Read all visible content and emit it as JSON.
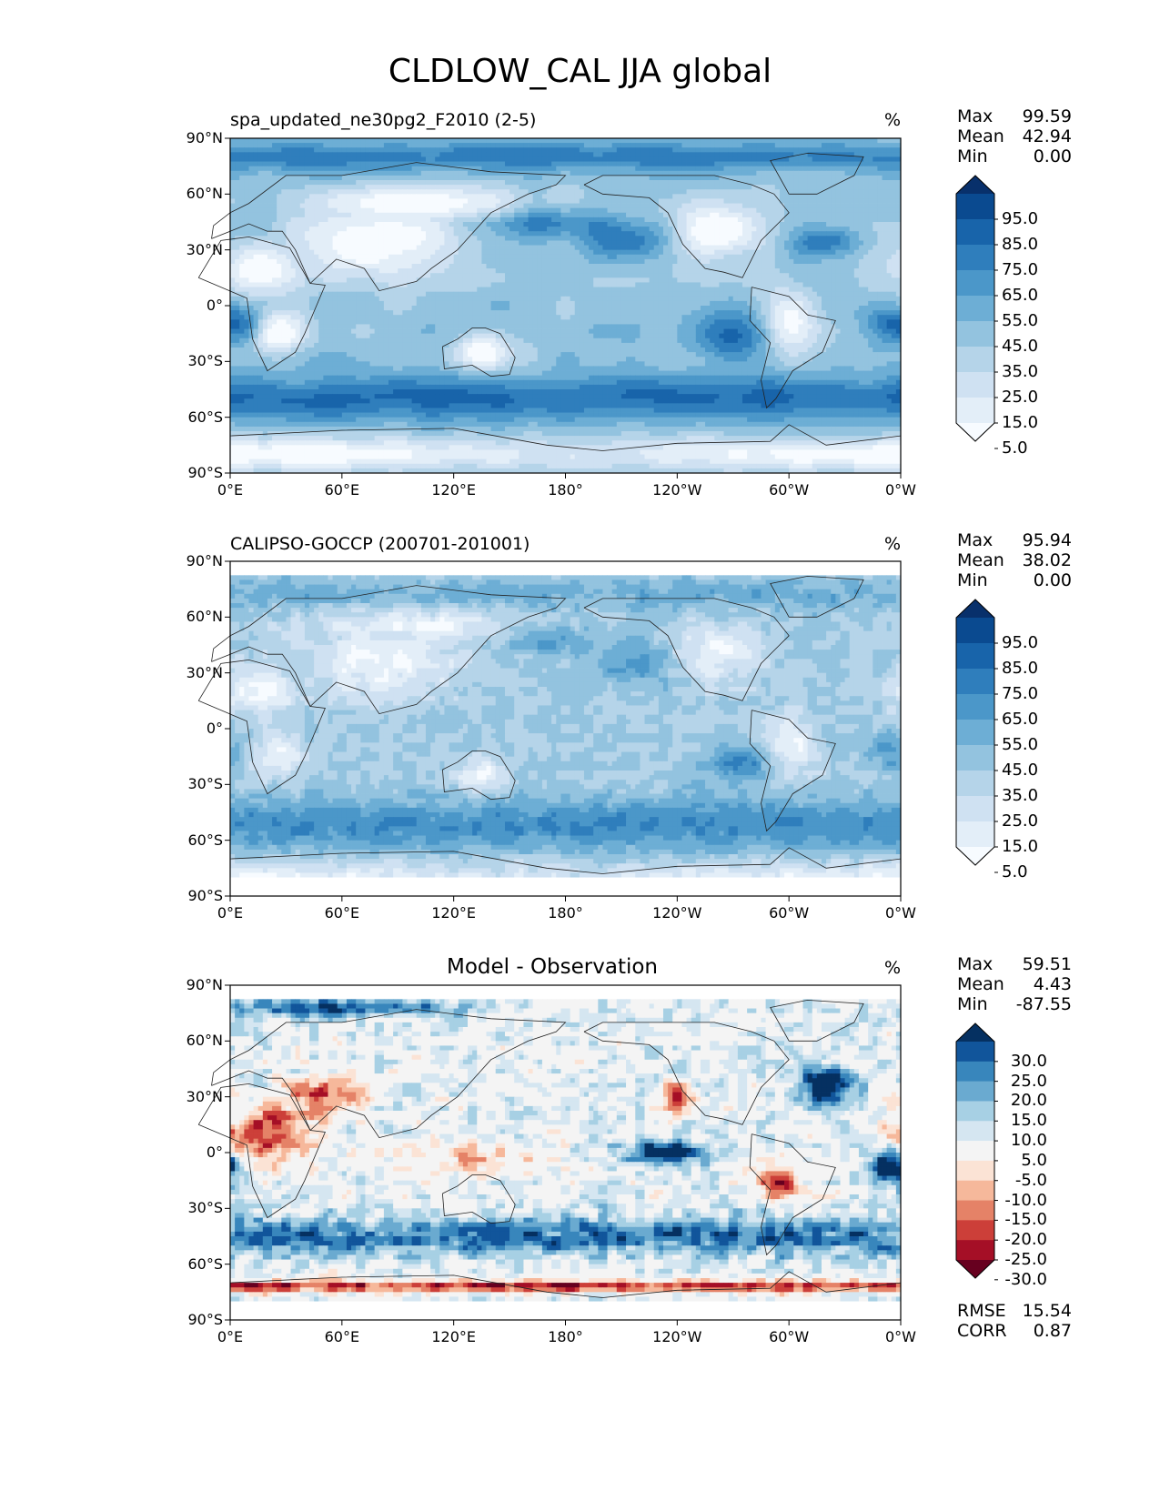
{
  "suptitle": "CLDLOW_CAL JJA global",
  "axes": {
    "lat_ticks": [
      "90°N",
      "60°N",
      "30°N",
      "0°",
      "30°S",
      "60°S",
      "90°S"
    ],
    "lon_ticks": [
      "0°E",
      "60°E",
      "120°E",
      "180°",
      "120°W",
      "60°W",
      "0°W"
    ]
  },
  "colors": {
    "blues": [
      "#f7fbff",
      "#e3eef8",
      "#cfe1f2",
      "#b5d4e9",
      "#93c3df",
      "#6daed5",
      "#4b97c9",
      "#2f7ebc",
      "#1864aa",
      "#0a4a90",
      "#08306b"
    ],
    "rdbu": [
      "#67001f",
      "#a50f26",
      "#cc3f39",
      "#e58267",
      "#f6b89b",
      "#fbe3d5",
      "#f4f4f4",
      "#d5e6f1",
      "#a7d0e4",
      "#6aaad0",
      "#3886bc",
      "#11559b",
      "#053061"
    ],
    "land_line": "#222222"
  },
  "panels": [
    {
      "title": "spa_updated_ne30pg2_F2010 (2-5)",
      "unit": "%",
      "stats": [
        {
          "label": "Max",
          "value": "99.59"
        },
        {
          "label": "Mean",
          "value": "42.94"
        },
        {
          "label": "Min",
          "value": "0.00"
        }
      ],
      "colorbar_labels": [
        "95.0",
        "85.0",
        "75.0",
        "65.0",
        "55.0",
        "45.0",
        "35.0",
        "25.0",
        "15.0",
        "5.0"
      ]
    },
    {
      "title": "CALIPSO-GOCCP (200701-201001)",
      "unit": "%",
      "stats": [
        {
          "label": "Max",
          "value": "95.94"
        },
        {
          "label": "Mean",
          "value": "38.02"
        },
        {
          "label": "Min",
          "value": "0.00"
        }
      ],
      "colorbar_labels": [
        "95.0",
        "85.0",
        "75.0",
        "65.0",
        "55.0",
        "45.0",
        "35.0",
        "25.0",
        "15.0",
        "5.0"
      ]
    },
    {
      "title": "Model - Observation",
      "unit": "%",
      "stats": [
        {
          "label": "Max",
          "value": "59.51"
        },
        {
          "label": "Mean",
          "value": "4.43"
        },
        {
          "label": "Min",
          "value": "-87.55"
        }
      ],
      "colorbar_labels": [
        "30.0",
        "25.0",
        "20.0",
        "15.0",
        "10.0",
        "5.0",
        "-5.0",
        "-10.0",
        "-15.0",
        "-20.0",
        "-25.0",
        "-30.0"
      ],
      "metrics": [
        {
          "label": "RMSE",
          "value": "15.54"
        },
        {
          "label": "CORR",
          "value": "0.87"
        }
      ]
    }
  ],
  "chart_data": [
    {
      "type": "heatmap",
      "title": "spa_updated_ne30pg2_F2010 (2-5)",
      "variable": "CLDLOW_CAL",
      "units": "%",
      "xlim": [
        0,
        360
      ],
      "ylim": [
        -90,
        90
      ],
      "levels": [
        0,
        5,
        15,
        25,
        35,
        45,
        55,
        65,
        75,
        85,
        95,
        100
      ],
      "stats": {
        "max": 99.59,
        "mean": 42.94,
        "min": 0.0
      }
    },
    {
      "type": "heatmap",
      "title": "CALIPSO-GOCCP (200701-201001)",
      "variable": "CLDLOW_CAL",
      "units": "%",
      "xlim": [
        0,
        360
      ],
      "ylim": [
        -90,
        90
      ],
      "levels": [
        0,
        5,
        15,
        25,
        35,
        45,
        55,
        65,
        75,
        85,
        95,
        100
      ],
      "stats": {
        "max": 95.94,
        "mean": 38.02,
        "min": 0.0
      }
    },
    {
      "type": "heatmap",
      "title": "Model - Observation",
      "variable": "CLDLOW_CAL difference",
      "units": "%",
      "xlim": [
        0,
        360
      ],
      "ylim": [
        -90,
        90
      ],
      "levels": [
        -30,
        -25,
        -20,
        -15,
        -10,
        -5,
        5,
        10,
        15,
        20,
        25,
        30
      ],
      "stats": {
        "max": 59.51,
        "mean": 4.43,
        "min": -87.55,
        "rmse": 15.54,
        "corr": 0.87
      }
    }
  ]
}
